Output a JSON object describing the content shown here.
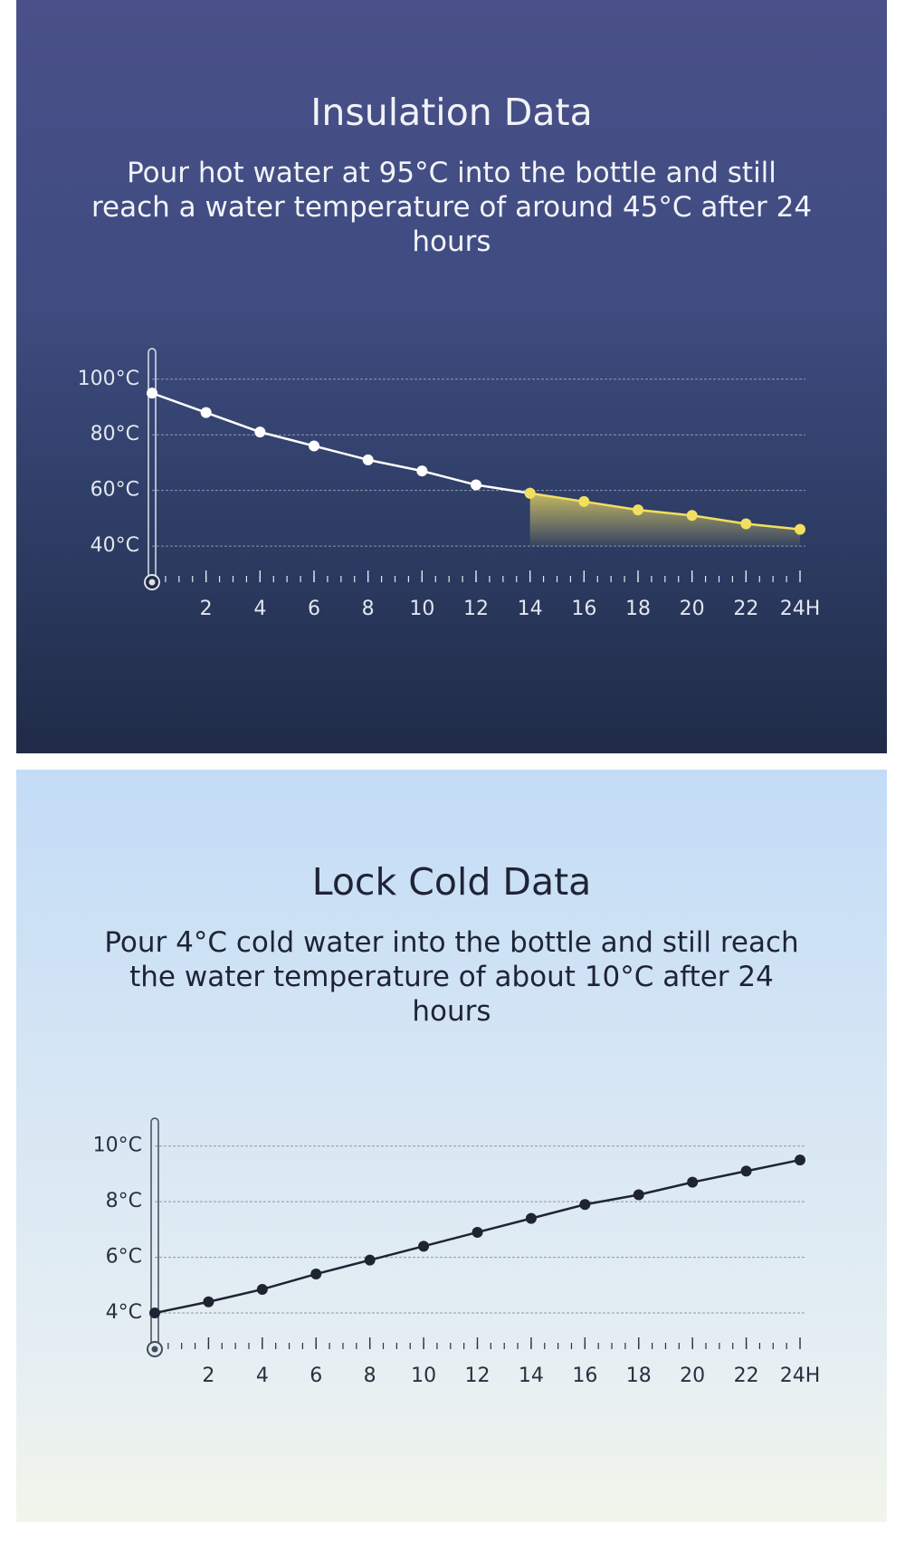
{
  "chart_data": [
    {
      "type": "line",
      "title": "Insulation Data",
      "subtitle": "Pour hot water at 95°C into the bottle and still reach a water temperature of around 45°C after 24 hours",
      "x": [
        0,
        2,
        4,
        6,
        8,
        10,
        12,
        14,
        16,
        18,
        20,
        22,
        24
      ],
      "series": [
        {
          "color": "#ffffff",
          "values": [
            95,
            88,
            81,
            76,
            71,
            67,
            62,
            59,
            null,
            null,
            null,
            null,
            null
          ]
        },
        {
          "color": "#f3df5f",
          "fill": true,
          "values": [
            null,
            null,
            null,
            null,
            null,
            null,
            null,
            59,
            56,
            53,
            51,
            48,
            46
          ]
        }
      ],
      "xlim": [
        0,
        24
      ],
      "ylim": [
        27,
        111
      ],
      "xticks": [
        2,
        4,
        6,
        8,
        10,
        12,
        14,
        16,
        18,
        20,
        22,
        {
          "value": 24,
          "label": "24H"
        }
      ],
      "yticks": [
        {
          "value": 40,
          "label": "40°C"
        },
        {
          "value": 60,
          "label": "60°C"
        },
        {
          "value": 80,
          "label": "80°C"
        },
        {
          "value": 100,
          "label": "100°C"
        }
      ],
      "grid": true
    },
    {
      "type": "line",
      "title": "Lock Cold Data",
      "subtitle": "Pour 4°C cold water into the bottle and still reach the water temperature of about 10°C after 24 hours",
      "x": [
        0,
        2,
        4,
        6,
        8,
        10,
        12,
        14,
        16,
        18,
        20,
        22,
        24
      ],
      "series": [
        {
          "color": "#1f2433",
          "values": [
            4,
            4.4,
            4.85,
            5.4,
            5.9,
            6.4,
            6.9,
            7.4,
            7.9,
            8.25,
            8.7,
            9.1,
            9.5
          ]
        }
      ],
      "xlim": [
        0,
        24
      ],
      "ylim": [
        2.7,
        11
      ],
      "xticks": [
        2,
        4,
        6,
        8,
        10,
        12,
        14,
        16,
        18,
        20,
        22,
        {
          "value": 24,
          "label": "24H"
        }
      ],
      "yticks": [
        {
          "value": 4,
          "label": "4°C"
        },
        {
          "value": 6,
          "label": "6°C"
        },
        {
          "value": 8,
          "label": "8°C"
        },
        {
          "value": 10,
          "label": "10°C"
        }
      ],
      "grid": true
    }
  ]
}
